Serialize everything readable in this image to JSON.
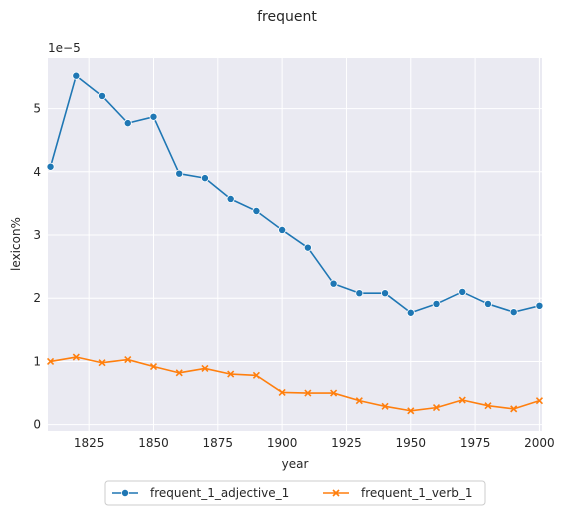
{
  "chart_data": {
    "type": "line",
    "title": "frequent",
    "xlabel": "year",
    "ylabel": "lexicon%",
    "y_offset_text": "1e−5",
    "x": [
      1810,
      1820,
      1830,
      1840,
      1850,
      1860,
      1870,
      1880,
      1890,
      1900,
      1910,
      1920,
      1930,
      1940,
      1950,
      1960,
      1970,
      1980,
      1990,
      2000
    ],
    "xlim": [
      1809,
      2001
    ],
    "ylim": [
      -0.1,
      5.8
    ],
    "xticks": [
      1825,
      1850,
      1875,
      1900,
      1925,
      1950,
      1975,
      2000
    ],
    "yticks": [
      0,
      1,
      2,
      3,
      4,
      5
    ],
    "grid": true,
    "legend_position": "bottom-center",
    "series": [
      {
        "name": "frequent_1_adjective_1",
        "color": "#1f77b4",
        "marker": "circle",
        "values": [
          4.08,
          5.52,
          5.2,
          4.77,
          4.87,
          3.97,
          3.9,
          3.57,
          3.38,
          3.08,
          2.8,
          2.23,
          2.08,
          2.08,
          1.77,
          1.91,
          2.1,
          1.91,
          1.78,
          1.88
        ]
      },
      {
        "name": "frequent_1_verb_1",
        "color": "#ff7f0e",
        "marker": "x",
        "values": [
          1.0,
          1.07,
          0.98,
          1.03,
          0.92,
          0.82,
          0.89,
          0.8,
          0.78,
          0.51,
          0.5,
          0.5,
          0.38,
          0.29,
          0.22,
          0.27,
          0.39,
          0.3,
          0.25,
          0.38
        ]
      }
    ]
  }
}
